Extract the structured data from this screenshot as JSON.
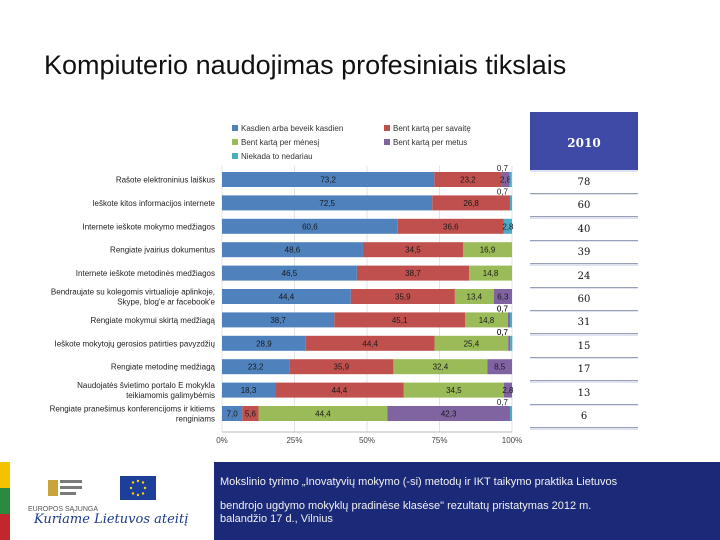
{
  "page_title": "Kompiuterio naudojimas profesiniais tikslais",
  "colors": {
    "series": [
      "#4f81bd",
      "#c0504d",
      "#9bbb59",
      "#8064a2",
      "#4bacc6"
    ],
    "year_header_bg": "#3e4aa6",
    "footer_bg": "#1a2a78"
  },
  "chart_data": {
    "type": "bar",
    "orientation": "horizontal-stacked-100",
    "categories": [
      "Rašote elektroninius laiškus",
      "Ieškote kitos informacijos internete",
      "Internete ieškote mokymo medžiagos",
      "Rengiate įvairius dokumentus",
      "Internete ieškote metodinės medžiagos",
      "Bendraujate su kolegomis virtualioje aplinkoje, Skype, blog'e ar facebook'e",
      "Rengiate mokymui skirtą medžiagą",
      "Ieškote mokytojų gerosios patirties pavyzdžių",
      "Rengiate metodinę medžiagą",
      "Naudojatės švietimo portalo E mokykla teikiamomis galimybėmis",
      "Rengiate pranešimus konferencijoms ir kitiems renginiams"
    ],
    "category_lines": [
      [
        "Rašote elektroninius laiškus"
      ],
      [
        "Ieškote kitos informacijos internete"
      ],
      [
        "Internete ieškote mokymo medžiagos"
      ],
      [
        "Rengiate įvairius dokumentus"
      ],
      [
        "Internete ieškote metodinės medžiagos"
      ],
      [
        "Bendraujate su kolegomis virtualioje aplinkoje,",
        "Skype, blog'e ar facebook'e"
      ],
      [
        "Rengiate mokymui skirtą medžiagą"
      ],
      [
        "Ieškote mokytojų gerosios patirties pavyzdžių"
      ],
      [
        "Rengiate metodinę medžiagą"
      ],
      [
        "Naudojatės švietimo portalo E mokykla",
        "teikiamomis galimybėmis"
      ],
      [
        "Rengiate pranešimus konferencijoms ir kitiems",
        "renginiams"
      ]
    ],
    "series": [
      {
        "name": "Kasdien arba beveik kasdien",
        "values": [
          73.2,
          72.5,
          60.6,
          48.6,
          46.5,
          44.4,
          38.7,
          28.9,
          23.2,
          18.3,
          7.0
        ]
      },
      {
        "name": "Bent kartą per savaitę",
        "values": [
          23.2,
          26.8,
          36.6,
          34.5,
          38.7,
          35.9,
          45.1,
          44.4,
          35.9,
          44.4,
          5.6
        ]
      },
      {
        "name": "Bent kartą per mėnesį",
        "values": [
          0,
          0,
          0,
          16.9,
          14.8,
          13.4,
          14.8,
          25.4,
          32.4,
          34.5,
          44.4
        ]
      },
      {
        "name": "Bent kartą per metus",
        "values": [
          2.8,
          0,
          0,
          0,
          0,
          6.3,
          0.7,
          0.7,
          8.5,
          2.8,
          42.3
        ]
      },
      {
        "name": "Niekada to nedariau",
        "values": [
          0.7,
          0.7,
          2.8,
          0,
          0,
          0,
          0.7,
          0.7,
          0,
          0,
          0.7
        ]
      }
    ],
    "bar_labels": [
      [
        "73,2",
        "23,2",
        "",
        "2,8",
        "0,7"
      ],
      [
        "72,5",
        "26,8",
        "",
        "",
        "0,7"
      ],
      [
        "60,6",
        "36,6",
        "",
        "",
        "2,8"
      ],
      [
        "48,6",
        "34,5",
        "16,9",
        "",
        ""
      ],
      [
        "46,5",
        "38,7",
        "14,8",
        "",
        ""
      ],
      [
        "44,4",
        "35,9",
        "13,4",
        "6,3",
        ""
      ],
      [
        "38,7",
        "45,1",
        "14,8",
        "0,7",
        "0,7"
      ],
      [
        "28,9",
        "44,4",
        "25,4",
        "0,7",
        "0,7"
      ],
      [
        "23,2",
        "35,9",
        "32,4",
        "8,5",
        ""
      ],
      [
        "18,3",
        "44,4",
        "34,5",
        "2,8",
        ""
      ],
      [
        "7,0",
        "5,6",
        "44,4",
        "42,3",
        "0,7"
      ]
    ],
    "xticks": [
      "0%",
      "25%",
      "50%",
      "75%",
      "100%"
    ],
    "xlim": [
      0,
      100
    ],
    "legend_position": "top"
  },
  "year_table": {
    "year": "2010",
    "values": [
      "78",
      "60",
      "40",
      "39",
      "24",
      "60",
      "31",
      "15",
      "17",
      "13",
      "6"
    ]
  },
  "footer": {
    "logo_caption": "EUROPOS SĄJUNGA",
    "slogan": "Kuriame Lietuvos ateitį",
    "line1": "Mokslinio tyrimo „Inovatyvių mokymo (-si) metodų ir IKT taikymo praktika Lietuvos",
    "line2": "bendrojo ugdymo mokyklų pradinėse klasėse\" rezultatų pristatymas 2012 m.",
    "line3": "balandžio 17 d., Vilnius"
  }
}
